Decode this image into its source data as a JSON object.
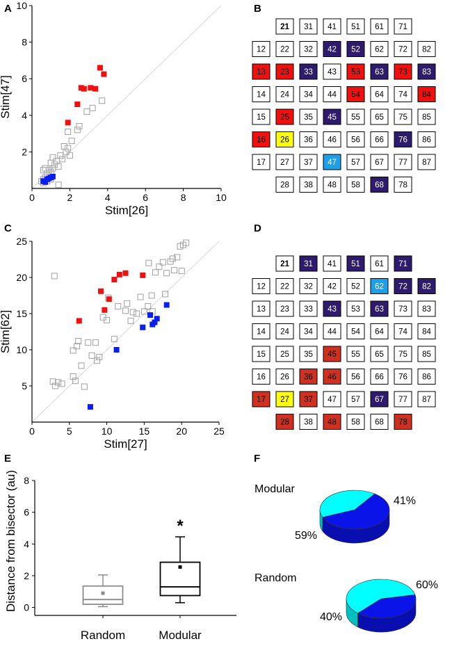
{
  "panel_letters": {
    "a": "A",
    "b": "B",
    "c": "C",
    "d": "D",
    "e": "E",
    "f": "F"
  },
  "colors": {
    "red": "#f01010",
    "dark_red": "#d03020",
    "navy": "#2e1b6e",
    "light_blue": "#1ea0e6",
    "yellow": "#ffff10",
    "blue": "#0a1ef0",
    "gray": "#a0a0a0",
    "cyan": "#00ffff",
    "pie_blue": "#0a14e8"
  },
  "chart_data": [
    {
      "id": "A",
      "type": "scatter",
      "xlabel": "Stim[26]",
      "ylabel": "Stim[47]",
      "xlim": [
        0,
        10
      ],
      "ylim": [
        0,
        10
      ],
      "xticks": [
        0,
        2,
        4,
        6,
        8,
        10
      ],
      "yticks": [
        2,
        4,
        6,
        8,
        10
      ],
      "bisector": true,
      "series": [
        {
          "name": "gray",
          "marker": "open-square",
          "color": "#a0a0a0",
          "points": [
            [
              0.5,
              0.4
            ],
            [
              0.6,
              0.5
            ],
            [
              0.7,
              0.6
            ],
            [
              0.8,
              0.8
            ],
            [
              0.9,
              1.0
            ],
            [
              1.0,
              0.9
            ],
            [
              0.6,
              1.0
            ],
            [
              0.8,
              0.4
            ],
            [
              1.1,
              1.1
            ],
            [
              1.2,
              1.3
            ],
            [
              1.3,
              1.5
            ],
            [
              1.4,
              1.2
            ],
            [
              1.5,
              1.8
            ],
            [
              1.1,
              1.7
            ],
            [
              1.6,
              1.6
            ],
            [
              1.0,
              1.4
            ],
            [
              0.7,
              1.1
            ],
            [
              1.8,
              2.0
            ],
            [
              1.9,
              2.2
            ],
            [
              1.7,
              2.3
            ],
            [
              2.0,
              1.8
            ],
            [
              2.1,
              2.6
            ],
            [
              1.9,
              3.1
            ],
            [
              2.4,
              3.2
            ],
            [
              2.5,
              3.4
            ],
            [
              2.9,
              4.2
            ],
            [
              3.2,
              4.4
            ],
            [
              3.7,
              4.8
            ],
            [
              1.4,
              0.2
            ],
            [
              0.6,
              0.3
            ],
            [
              1.0,
              0.5
            ]
          ]
        },
        {
          "name": "red",
          "marker": "filled-square",
          "color": "#f01010",
          "points": [
            [
              1.9,
              3.6
            ],
            [
              2.4,
              4.6
            ],
            [
              2.6,
              5.5
            ],
            [
              2.75,
              5.45
            ],
            [
              3.1,
              5.5
            ],
            [
              3.35,
              5.45
            ],
            [
              3.6,
              6.6
            ],
            [
              3.8,
              6.25
            ]
          ]
        },
        {
          "name": "blue",
          "marker": "filled-square",
          "color": "#0a1ef0",
          "points": [
            [
              0.6,
              0.4
            ],
            [
              0.8,
              0.5
            ],
            [
              0.9,
              0.55
            ],
            [
              1.0,
              0.6
            ],
            [
              1.1,
              0.65
            ],
            [
              0.7,
              0.35
            ]
          ]
        }
      ]
    },
    {
      "id": "C",
      "type": "scatter",
      "xlabel": "Stim[27]",
      "ylabel": "Stim[62]",
      "xlim": [
        0,
        25
      ],
      "ylim": [
        0,
        25
      ],
      "xticks": [
        0,
        5,
        10,
        15,
        20,
        25
      ],
      "yticks": [
        5,
        10,
        15,
        20,
        25
      ],
      "bisector": true,
      "series": [
        {
          "name": "gray",
          "marker": "open-square",
          "color": "#a0a0a0",
          "points": [
            [
              3.0,
              20.2
            ],
            [
              2.8,
              5.6
            ],
            [
              3.1,
              5.0
            ],
            [
              3.5,
              5.5
            ],
            [
              4.0,
              5.3
            ],
            [
              5.5,
              6.3
            ],
            [
              5.8,
              5.7
            ],
            [
              5.5,
              9.9
            ],
            [
              6.0,
              10.5
            ],
            [
              6.2,
              11.2
            ],
            [
              6.6,
              7.8
            ],
            [
              7.0,
              4.9
            ],
            [
              7.5,
              11.0
            ],
            [
              8.0,
              9.2
            ],
            [
              8.5,
              11.0
            ],
            [
              8.7,
              8.5
            ],
            [
              9.0,
              9.0
            ],
            [
              9.5,
              14.5
            ],
            [
              10.0,
              14.1
            ],
            [
              10.2,
              17.2
            ],
            [
              11.0,
              11.5
            ],
            [
              11.5,
              16.0
            ],
            [
              12.5,
              15.4
            ],
            [
              12.7,
              16.4
            ],
            [
              13.2,
              14.0
            ],
            [
              13.5,
              15.2
            ],
            [
              14.0,
              15.0
            ],
            [
              14.5,
              17.3
            ],
            [
              15.0,
              15.3
            ],
            [
              15.5,
              16.0
            ],
            [
              16.0,
              17.5
            ],
            [
              16.5,
              20.7
            ],
            [
              17.0,
              21.5
            ],
            [
              17.5,
              22.1
            ],
            [
              18.0,
              20.6
            ],
            [
              18.5,
              22.2
            ],
            [
              18.8,
              22.6
            ],
            [
              19.0,
              21.0
            ],
            [
              19.4,
              22.8
            ],
            [
              19.8,
              24.3
            ],
            [
              20.2,
              24.5
            ],
            [
              20.6,
              24.8
            ],
            [
              20.0,
              20.9
            ],
            [
              17.8,
              17.7
            ],
            [
              15.6,
              22.0
            ],
            [
              16.1,
              15.3
            ]
          ]
        },
        {
          "name": "red",
          "marker": "filled-square",
          "color": "#f01010",
          "points": [
            [
              6.3,
              14.0
            ],
            [
              9.2,
              18.1
            ],
            [
              9.7,
              15.5
            ],
            [
              10.3,
              17.0
            ],
            [
              11.0,
              19.7
            ],
            [
              11.7,
              20.4
            ],
            [
              12.5,
              20.6
            ],
            [
              14.8,
              20.3
            ]
          ]
        },
        {
          "name": "blue",
          "marker": "filled-square",
          "color": "#0a1ef0",
          "points": [
            [
              7.8,
              2.1
            ],
            [
              11.3,
              10.0
            ],
            [
              14.8,
              13.1
            ],
            [
              15.8,
              14.8
            ],
            [
              16.1,
              13.5
            ],
            [
              16.4,
              13.8
            ],
            [
              16.7,
              14.3
            ],
            [
              18.0,
              16.2
            ]
          ]
        }
      ]
    },
    {
      "id": "E",
      "type": "box",
      "ylabel": "Distance from bisector (au)",
      "categories": [
        "Random",
        "Modular"
      ],
      "ylim": [
        -0.5,
        8
      ],
      "yticks": [
        0,
        2,
        4,
        6,
        8
      ],
      "boxes": [
        {
          "name": "Random",
          "color": "#8c8c8c",
          "min": 0.05,
          "q1": 0.2,
          "median": 0.5,
          "q3": 1.35,
          "max": 2.05,
          "mean": 0.9
        },
        {
          "name": "Modular",
          "color": "#000000",
          "min": 0.3,
          "q1": 0.75,
          "median": 1.3,
          "q3": 2.85,
          "max": 4.45,
          "mean": 2.55
        }
      ],
      "annotation": "*"
    },
    {
      "id": "F",
      "type": "pie",
      "pies": [
        {
          "title": "Modular",
          "slices": [
            {
              "label": "59%",
              "value": 59,
              "color": "#0a14e8"
            },
            {
              "label": "41%",
              "value": 41,
              "color": "#00ffff"
            }
          ]
        },
        {
          "title": "Random",
          "slices": [
            {
              "label": "40%",
              "value": 40,
              "color": "#0a14e8"
            },
            {
              "label": "60%",
              "value": 60,
              "color": "#00ffff"
            }
          ]
        }
      ]
    }
  ],
  "grid_b": {
    "columns": [
      [
        "",
        "12",
        "13",
        "14",
        "15",
        "16",
        "17",
        ""
      ],
      [
        "21",
        "22",
        "23",
        "24",
        "25",
        "26",
        "27",
        "28"
      ],
      [
        "31",
        "32",
        "33",
        "34",
        "35",
        "36",
        "37",
        "38"
      ],
      [
        "41",
        "42",
        "43",
        "44",
        "45",
        "46",
        "47",
        "48"
      ],
      [
        "51",
        "52",
        "53",
        "54",
        "55",
        "56",
        "57",
        "58"
      ],
      [
        "61",
        "62",
        "63",
        "64",
        "65",
        "66",
        "67",
        "68"
      ],
      [
        "71",
        "72",
        "73",
        "74",
        "75",
        "76",
        "77",
        "78"
      ],
      [
        "",
        "82",
        "83",
        "84",
        "85",
        "86",
        "87",
        ""
      ]
    ],
    "highlights": {
      "13": "red",
      "23": "red",
      "53": "red",
      "73": "red",
      "54": "red",
      "84": "red",
      "25": "red",
      "16": "red",
      "42": "navy",
      "52": "navy",
      "33": "navy",
      "63": "navy",
      "83": "navy",
      "45": "navy",
      "76": "navy",
      "68": "navy",
      "26": "yellow",
      "47": "light_blue"
    },
    "bold": [
      "21"
    ]
  },
  "grid_d": {
    "columns": [
      [
        "",
        "12",
        "13",
        "14",
        "15",
        "16",
        "17",
        ""
      ],
      [
        "21",
        "22",
        "23",
        "24",
        "25",
        "26",
        "27",
        "28"
      ],
      [
        "31",
        "32",
        "33",
        "34",
        "35",
        "36",
        "37",
        "38"
      ],
      [
        "41",
        "42",
        "43",
        "44",
        "45",
        "46",
        "47",
        "48"
      ],
      [
        "51",
        "52",
        "53",
        "54",
        "55",
        "56",
        "57",
        "58"
      ],
      [
        "61",
        "62",
        "63",
        "64",
        "65",
        "66",
        "67",
        "68"
      ],
      [
        "71",
        "72",
        "73",
        "74",
        "75",
        "76",
        "77",
        "78"
      ],
      [
        "",
        "82",
        "83",
        "84",
        "85",
        "86",
        "87",
        ""
      ]
    ],
    "highlights": {
      "31": "navy",
      "51": "navy",
      "71": "navy",
      "72": "navy",
      "82": "navy",
      "43": "navy",
      "63": "navy",
      "67": "navy",
      "62": "light_blue",
      "45": "dark_red",
      "36": "dark_red",
      "46": "dark_red",
      "17": "dark_red",
      "37": "dark_red",
      "28": "dark_red",
      "48": "dark_red",
      "78": "dark_red",
      "27": "yellow"
    },
    "bold": [
      "21"
    ]
  }
}
